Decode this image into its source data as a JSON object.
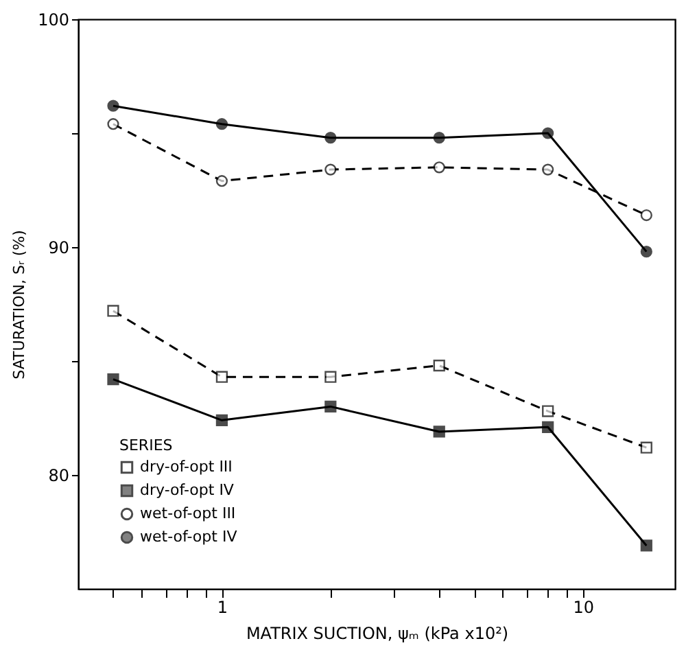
{
  "chart_data": {
    "type": "line",
    "xlabel": "MATRIX SUCTION, ψₘ (kPa x10²)",
    "ylabel": "SATURATION, Sᵣ (%)",
    "legend_title": "SERIES",
    "log": "x",
    "grid": false,
    "legend": "bottom left",
    "xlim": [
      0.4,
      18
    ],
    "ylim": [
      75,
      100
    ],
    "xticks": [
      {
        "value": 0.5,
        "label": null
      },
      {
        "value": 0.6,
        "label": null
      },
      {
        "value": 0.7,
        "label": null
      },
      {
        "value": 0.8,
        "label": null
      },
      {
        "value": 0.9,
        "label": null
      },
      1,
      {
        "value": 2,
        "label": null
      },
      {
        "value": 3,
        "label": null
      },
      {
        "value": 4,
        "label": null
      },
      {
        "value": 5,
        "label": null
      },
      {
        "value": 6,
        "label": null
      },
      {
        "value": 7,
        "label": null
      },
      {
        "value": 8,
        "label": null
      },
      {
        "value": 9,
        "label": null
      },
      10
    ],
    "yticks": [
      80,
      {
        "value": 85,
        "label": null
      },
      90,
      {
        "value": 95,
        "label": null
      },
      100
    ],
    "x": [
      0.5,
      1,
      2,
      4,
      8,
      15
    ],
    "series": [
      {
        "name": "dry-of-opt III",
        "color": "#000000",
        "marker": "square",
        "line_style": "dashed",
        "values": [
          87.2,
          84.3,
          84.3,
          84.8,
          82.8,
          81.2
        ]
      },
      {
        "name": "dry-of-opt IV",
        "color": "#000000",
        "marker": "square",
        "line_style": "solid",
        "values": [
          84.2,
          82.4,
          83.0,
          81.9,
          82.1,
          76.9
        ]
      },
      {
        "name": "wet-of-opt III",
        "color": "#000000",
        "marker": "circle",
        "line_style": "dashed",
        "values": [
          95.4,
          92.9,
          93.4,
          93.5,
          93.4,
          91.4
        ]
      },
      {
        "name": "wet-of-opt IV",
        "color": "#000000",
        "marker": "circle",
        "line_style": "solid",
        "values": [
          96.2,
          95.4,
          94.8,
          94.8,
          95.0,
          89.8
        ]
      }
    ]
  }
}
